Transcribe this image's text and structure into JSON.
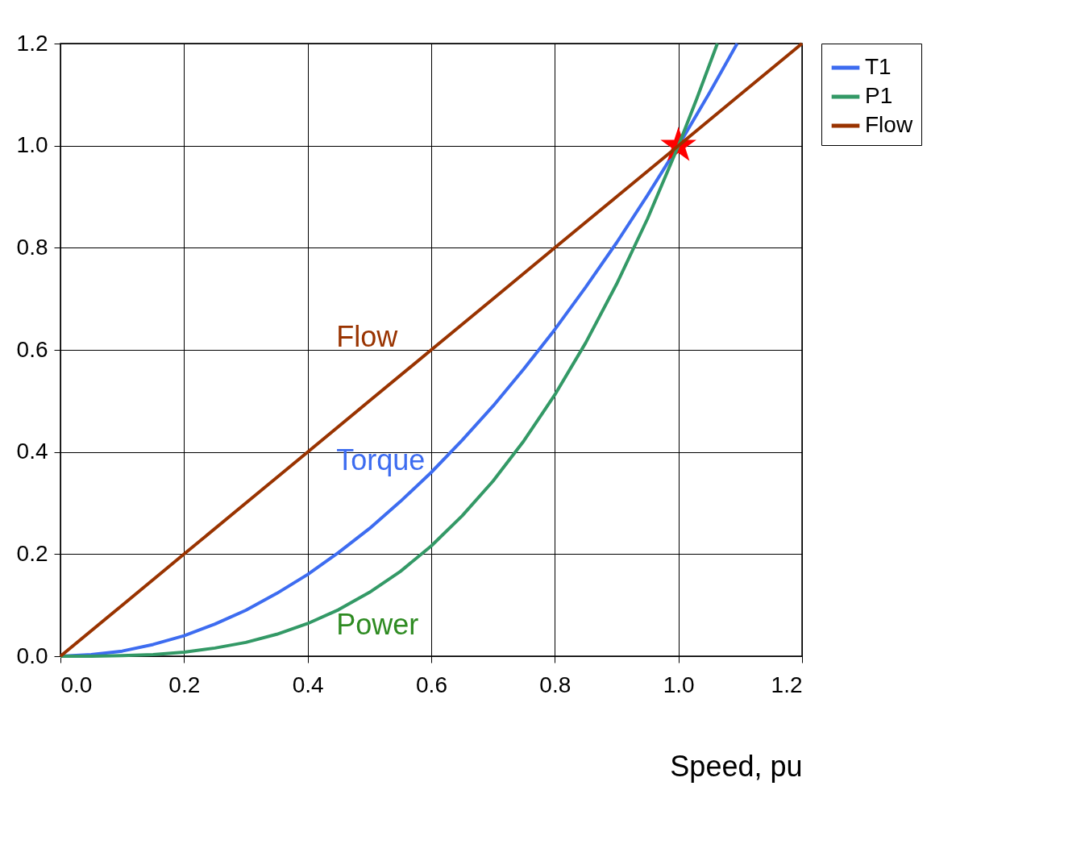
{
  "chart_data": {
    "type": "line",
    "xlabel": "Speed, pu",
    "xlim": [
      0,
      1.2
    ],
    "ylim": [
      0,
      1.2
    ],
    "xticks": [
      {
        "value": 0,
        "label": "0.0"
      },
      {
        "value": 0.2,
        "label": "0.2"
      },
      {
        "value": 0.4,
        "label": "0.4"
      },
      {
        "value": 0.6,
        "label": "0.6"
      },
      {
        "value": 0.8,
        "label": "0.8"
      },
      {
        "value": 1,
        "label": "1.0"
      },
      {
        "value": 1.2,
        "label": "1.2"
      }
    ],
    "yticks": [
      {
        "value": 0,
        "label": "0.0"
      },
      {
        "value": 0.2,
        "label": "0.2"
      },
      {
        "value": 0.4,
        "label": "0.4"
      },
      {
        "value": 0.6,
        "label": "0.6"
      },
      {
        "value": 0.8,
        "label": "0.8"
      },
      {
        "value": 1,
        "label": "1.0"
      },
      {
        "value": 1.2,
        "label": "1.2"
      }
    ],
    "grid": true,
    "legend": "right",
    "line_style": "solid",
    "marker": "none",
    "series": [
      {
        "name": "T1",
        "color": "#3d6cf0",
        "x": [
          0,
          0.05,
          0.1,
          0.15,
          0.2,
          0.25,
          0.3,
          0.35,
          0.4,
          0.45,
          0.5,
          0.55,
          0.6,
          0.65,
          0.7,
          0.75,
          0.8,
          0.85,
          0.9,
          0.95,
          1.0,
          1.05,
          1.095
        ],
        "values": [
          0,
          0.003,
          0.01,
          0.023,
          0.04,
          0.063,
          0.09,
          0.123,
          0.16,
          0.203,
          0.25,
          0.303,
          0.36,
          0.423,
          0.49,
          0.563,
          0.64,
          0.723,
          0.81,
          0.903,
          1.0,
          1.103,
          1.2
        ]
      },
      {
        "name": "P1",
        "color": "#339966",
        "x": [
          0,
          0.05,
          0.1,
          0.15,
          0.2,
          0.25,
          0.3,
          0.35,
          0.4,
          0.45,
          0.5,
          0.55,
          0.6,
          0.65,
          0.7,
          0.75,
          0.8,
          0.85,
          0.9,
          0.95,
          1.0,
          1.03,
          1.063
        ],
        "values": [
          0,
          0,
          0.001,
          0.003,
          0.008,
          0.016,
          0.027,
          0.043,
          0.064,
          0.091,
          0.125,
          0.166,
          0.216,
          0.275,
          0.343,
          0.422,
          0.512,
          0.614,
          0.729,
          0.857,
          1.0,
          1.093,
          1.2
        ]
      },
      {
        "name": "Flow",
        "color": "#993300",
        "x": [
          0,
          0.1,
          0.2,
          0.3,
          0.4,
          0.5,
          0.6,
          0.7,
          0.8,
          0.9,
          1.0,
          1.1,
          1.2
        ],
        "values": [
          0,
          0.1,
          0.2,
          0.3,
          0.4,
          0.5,
          0.6,
          0.7,
          0.8,
          0.9,
          1.0,
          1.1,
          1.2
        ]
      },
      {
        "type": "scatter",
        "marker": "star",
        "color": "#ff0000",
        "x": [
          1.0
        ],
        "values": [
          1.0
        ]
      }
    ],
    "annotations": [
      "Flow",
      "Torque",
      "Power"
    ]
  }
}
